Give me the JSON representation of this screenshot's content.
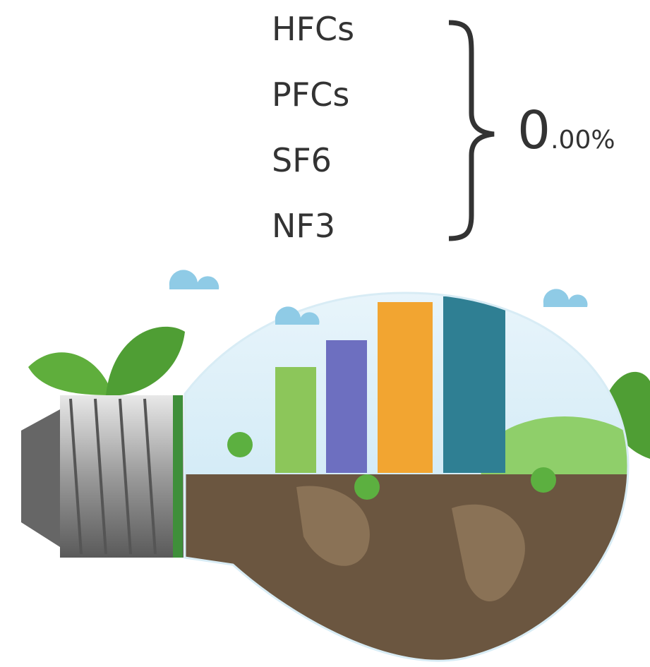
{
  "gases": [
    "HFCs",
    "PFCs",
    "SF6",
    "NF3"
  ],
  "share": {
    "integer": "0",
    "decimals": ".00%"
  }
}
